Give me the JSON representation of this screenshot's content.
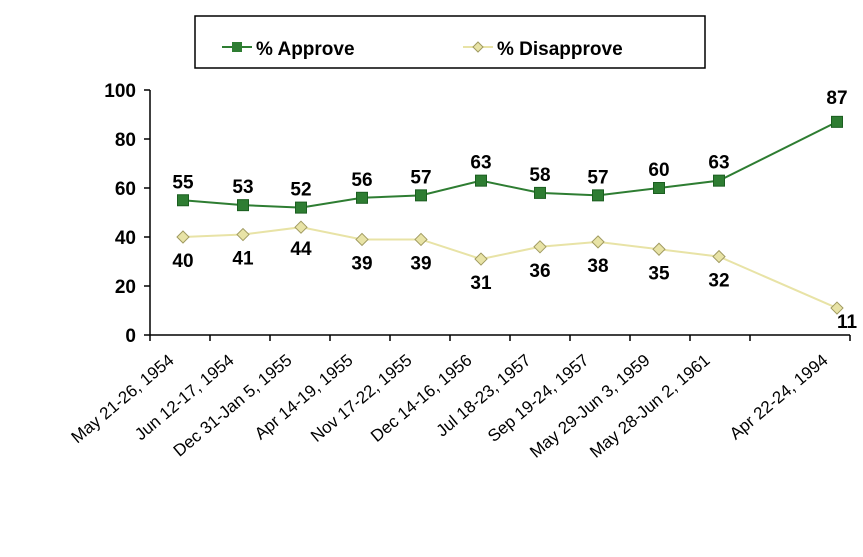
{
  "chart_data": {
    "type": "line",
    "categories": [
      "May 21-26, 1954",
      "Jun 12-17, 1954",
      "Dec 31-Jan 5, 1955",
      "Apr 14-19, 1955",
      "Nov 17-22, 1955",
      "Dec 14-16, 1956",
      "Jul 18-23, 1957",
      "Sep 19-24, 1957",
      "May 29-Jun 3, 1959",
      "May 28-Jun 2, 1961",
      "Apr 22-24, 1994"
    ],
    "series": [
      {
        "name": "% Approve",
        "color": "#2e7d32",
        "marker": "square",
        "values": [
          55,
          53,
          52,
          56,
          57,
          63,
          58,
          57,
          60,
          63,
          87
        ]
      },
      {
        "name": "% Disapprove",
        "color": "#e8e3a6",
        "marker": "diamond",
        "values": [
          40,
          41,
          44,
          39,
          39,
          31,
          36,
          38,
          35,
          32,
          11
        ]
      }
    ],
    "yticks": [
      0,
      20,
      40,
      60,
      80,
      100
    ],
    "ylim": [
      0,
      100
    ],
    "title": "",
    "xlabel": "",
    "ylabel": "",
    "grid": false,
    "legend_position": "top"
  }
}
